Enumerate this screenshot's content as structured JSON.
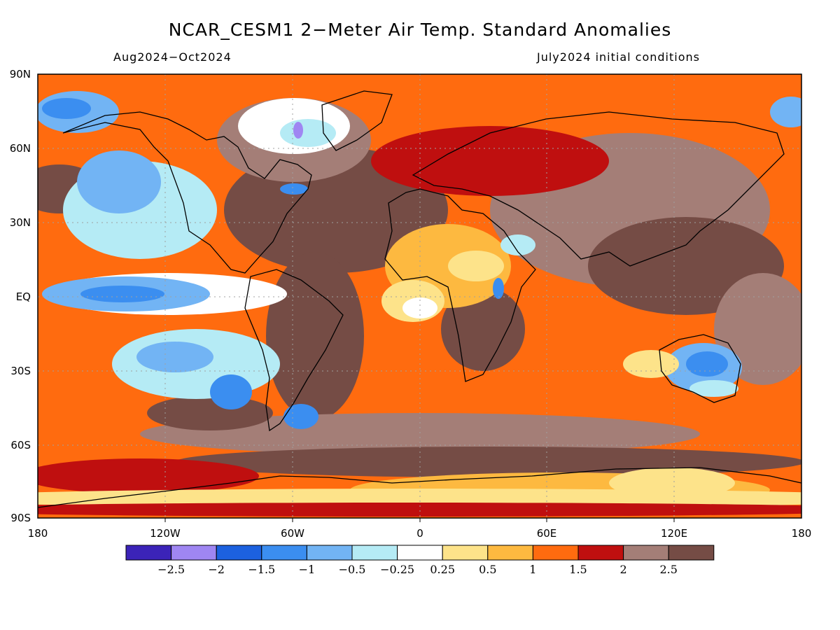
{
  "title": "NCAR_CESM1 2−Meter Air Temp. Standard Anomalies",
  "subtitle_left": "Aug2024−Oct2024",
  "subtitle_right": "July2024 initial conditions",
  "lat_labels": [
    "90N",
    "60N",
    "30N",
    "EQ",
    "30S",
    "60S",
    "90S"
  ],
  "lon_labels": [
    "180",
    "120W",
    "60W",
    "0",
    "60E",
    "120E",
    "180"
  ],
  "colorbar": {
    "colors": [
      "#3b23b8",
      "#9f86f2",
      "#1c61df",
      "#3b8ef0",
      "#72b4f4",
      "#b5ebf5",
      "#ffffff",
      "#fde38a",
      "#fdb940",
      "#ff6b0f",
      "#bf0f0f",
      "#a47e77",
      "#754c45"
    ],
    "labels": [
      "−2.5",
      "−2",
      "−1.5",
      "−1",
      "−0.5",
      "−0.25",
      "0.25",
      "0.5",
      "1",
      "1.5",
      "2",
      "2.5"
    ]
  },
  "map_data": {
    "projection": "equirectangular",
    "lat_range": [
      -90,
      90
    ],
    "lon_range": [
      -180,
      180
    ],
    "field": "2-meter air temperature standard anomaly"
  }
}
